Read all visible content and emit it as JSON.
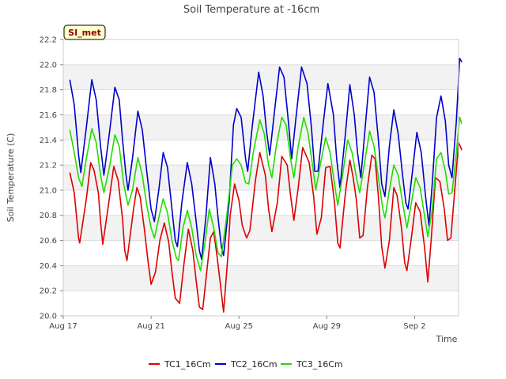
{
  "chart_data": {
    "type": "line",
    "title": "Soil Temperature at -16cm",
    "xlabel": "Time",
    "ylabel": "Soil Temperature (C)",
    "badge": "SI_met",
    "x_ticks": [
      {
        "day": 0,
        "label": "Aug 17"
      },
      {
        "day": 4,
        "label": "Aug 21"
      },
      {
        "day": 8,
        "label": "Aug 25"
      },
      {
        "day": 12,
        "label": "Aug 29"
      },
      {
        "day": 16,
        "label": "Sep 2"
      }
    ],
    "xlim": [
      0,
      18
    ],
    "ylim": [
      20.0,
      22.2
    ],
    "y_ticks": [
      "20.0",
      "20.2",
      "20.4",
      "20.6",
      "20.8",
      "21.0",
      "21.2",
      "21.4",
      "21.6",
      "21.8",
      "22.0",
      "22.2"
    ],
    "grid": true,
    "legend_position": "bottom",
    "series": [
      {
        "name": "TC1_16Cm",
        "color": "#dd0000",
        "points": [
          [
            0.3,
            21.14
          ],
          [
            0.5,
            20.98
          ],
          [
            0.7,
            20.62
          ],
          [
            0.75,
            20.58
          ],
          [
            1.05,
            20.93
          ],
          [
            1.25,
            21.22
          ],
          [
            1.4,
            21.16
          ],
          [
            1.6,
            20.98
          ],
          [
            1.7,
            20.75
          ],
          [
            1.8,
            20.57
          ],
          [
            2.05,
            20.87
          ],
          [
            2.3,
            21.19
          ],
          [
            2.5,
            21.08
          ],
          [
            2.7,
            20.77
          ],
          [
            2.8,
            20.52
          ],
          [
            2.9,
            20.44
          ],
          [
            3.2,
            20.85
          ],
          [
            3.35,
            21.02
          ],
          [
            3.5,
            20.95
          ],
          [
            3.7,
            20.68
          ],
          [
            3.85,
            20.45
          ],
          [
            4.0,
            20.25
          ],
          [
            4.2,
            20.35
          ],
          [
            4.4,
            20.6
          ],
          [
            4.6,
            20.74
          ],
          [
            4.8,
            20.59
          ],
          [
            4.95,
            20.35
          ],
          [
            5.1,
            20.14
          ],
          [
            5.3,
            20.1
          ],
          [
            5.5,
            20.42
          ],
          [
            5.7,
            20.69
          ],
          [
            5.9,
            20.52
          ],
          [
            6.05,
            20.28
          ],
          [
            6.2,
            20.07
          ],
          [
            6.35,
            20.05
          ],
          [
            6.7,
            20.62
          ],
          [
            6.85,
            20.67
          ],
          [
            7.0,
            20.48
          ],
          [
            7.15,
            20.26
          ],
          [
            7.3,
            20.03
          ],
          [
            7.5,
            20.48
          ],
          [
            7.6,
            20.8
          ],
          [
            7.8,
            21.05
          ],
          [
            8.0,
            20.92
          ],
          [
            8.15,
            20.72
          ],
          [
            8.35,
            20.62
          ],
          [
            8.5,
            20.68
          ],
          [
            8.75,
            21.08
          ],
          [
            8.95,
            21.3
          ],
          [
            9.2,
            21.12
          ],
          [
            9.35,
            20.85
          ],
          [
            9.5,
            20.67
          ],
          [
            9.75,
            20.9
          ],
          [
            9.95,
            21.27
          ],
          [
            10.2,
            21.2
          ],
          [
            10.35,
            20.96
          ],
          [
            10.5,
            20.76
          ],
          [
            10.7,
            21.02
          ],
          [
            10.9,
            21.34
          ],
          [
            11.2,
            21.22
          ],
          [
            11.4,
            20.95
          ],
          [
            11.55,
            20.65
          ],
          [
            11.75,
            20.78
          ],
          [
            11.95,
            21.18
          ],
          [
            12.15,
            21.19
          ],
          [
            12.35,
            20.9
          ],
          [
            12.5,
            20.58
          ],
          [
            12.6,
            20.54
          ],
          [
            12.85,
            20.98
          ],
          [
            13.05,
            21.24
          ],
          [
            13.2,
            21.1
          ],
          [
            13.35,
            20.92
          ],
          [
            13.5,
            20.62
          ],
          [
            13.65,
            20.64
          ],
          [
            13.85,
            21.02
          ],
          [
            14.05,
            21.28
          ],
          [
            14.2,
            21.25
          ],
          [
            14.35,
            20.95
          ],
          [
            14.5,
            20.55
          ],
          [
            14.65,
            20.38
          ],
          [
            14.85,
            20.6
          ],
          [
            15.05,
            21.02
          ],
          [
            15.2,
            20.96
          ],
          [
            15.4,
            20.7
          ],
          [
            15.55,
            20.42
          ],
          [
            15.65,
            20.36
          ],
          [
            15.85,
            20.62
          ],
          [
            16.05,
            20.9
          ],
          [
            16.25,
            20.83
          ],
          [
            16.45,
            20.55
          ],
          [
            16.6,
            20.27
          ],
          [
            16.75,
            20.6
          ],
          [
            16.95,
            21.1
          ],
          [
            17.15,
            21.07
          ],
          [
            17.35,
            20.85
          ],
          [
            17.5,
            20.6
          ],
          [
            17.65,
            20.62
          ],
          [
            17.85,
            21.05
          ],
          [
            18.0,
            21.38
          ],
          [
            18.15,
            21.32
          ]
        ]
      },
      {
        "name": "TC2_16Cm",
        "color": "#0000cc",
        "points": [
          [
            0.3,
            21.88
          ],
          [
            0.5,
            21.68
          ],
          [
            0.7,
            21.28
          ],
          [
            0.8,
            21.14
          ],
          [
            1.05,
            21.5
          ],
          [
            1.3,
            21.88
          ],
          [
            1.5,
            21.72
          ],
          [
            1.7,
            21.35
          ],
          [
            1.85,
            21.12
          ],
          [
            2.1,
            21.45
          ],
          [
            2.35,
            21.82
          ],
          [
            2.55,
            21.72
          ],
          [
            2.7,
            21.4
          ],
          [
            2.85,
            21.13
          ],
          [
            2.95,
            21.0
          ],
          [
            3.15,
            21.25
          ],
          [
            3.4,
            21.63
          ],
          [
            3.6,
            21.48
          ],
          [
            3.8,
            21.15
          ],
          [
            4.0,
            20.85
          ],
          [
            4.15,
            20.75
          ],
          [
            4.35,
            21.0
          ],
          [
            4.55,
            21.3
          ],
          [
            4.75,
            21.18
          ],
          [
            4.95,
            20.85
          ],
          [
            5.1,
            20.6
          ],
          [
            5.2,
            20.55
          ],
          [
            5.4,
            20.9
          ],
          [
            5.65,
            21.22
          ],
          [
            5.85,
            21.05
          ],
          [
            6.05,
            20.75
          ],
          [
            6.2,
            20.52
          ],
          [
            6.3,
            20.45
          ],
          [
            6.5,
            20.8
          ],
          [
            6.7,
            21.26
          ],
          [
            6.9,
            21.05
          ],
          [
            7.05,
            20.78
          ],
          [
            7.2,
            20.55
          ],
          [
            7.3,
            20.48
          ],
          [
            7.55,
            20.9
          ],
          [
            7.75,
            21.52
          ],
          [
            7.9,
            21.65
          ],
          [
            8.1,
            21.58
          ],
          [
            8.3,
            21.25
          ],
          [
            8.4,
            21.15
          ],
          [
            8.6,
            21.5
          ],
          [
            8.9,
            21.94
          ],
          [
            9.1,
            21.75
          ],
          [
            9.25,
            21.48
          ],
          [
            9.4,
            21.28
          ],
          [
            9.6,
            21.6
          ],
          [
            9.85,
            21.98
          ],
          [
            10.05,
            21.9
          ],
          [
            10.25,
            21.55
          ],
          [
            10.4,
            21.25
          ],
          [
            10.6,
            21.58
          ],
          [
            10.85,
            21.98
          ],
          [
            11.1,
            21.85
          ],
          [
            11.3,
            21.5
          ],
          [
            11.45,
            21.15
          ],
          [
            11.6,
            21.15
          ],
          [
            11.85,
            21.55
          ],
          [
            12.05,
            21.85
          ],
          [
            12.3,
            21.6
          ],
          [
            12.45,
            21.25
          ],
          [
            12.6,
            21.02
          ],
          [
            12.85,
            21.45
          ],
          [
            13.05,
            21.84
          ],
          [
            13.25,
            21.6
          ],
          [
            13.4,
            21.3
          ],
          [
            13.55,
            21.1
          ],
          [
            13.75,
            21.5
          ],
          [
            13.95,
            21.9
          ],
          [
            14.15,
            21.78
          ],
          [
            14.35,
            21.4
          ],
          [
            14.5,
            21.05
          ],
          [
            14.65,
            20.95
          ],
          [
            14.85,
            21.35
          ],
          [
            15.05,
            21.64
          ],
          [
            15.25,
            21.45
          ],
          [
            15.45,
            21.12
          ],
          [
            15.6,
            20.9
          ],
          [
            15.7,
            20.85
          ],
          [
            15.9,
            21.15
          ],
          [
            16.1,
            21.46
          ],
          [
            16.3,
            21.3
          ],
          [
            16.5,
            20.95
          ],
          [
            16.65,
            20.72
          ],
          [
            16.8,
            21.05
          ],
          [
            17.0,
            21.58
          ],
          [
            17.2,
            21.75
          ],
          [
            17.4,
            21.55
          ],
          [
            17.55,
            21.2
          ],
          [
            17.7,
            21.1
          ],
          [
            17.9,
            21.55
          ],
          [
            18.05,
            22.05
          ],
          [
            18.15,
            22.02
          ]
        ]
      },
      {
        "name": "TC3_16Cm",
        "color": "#22dd00",
        "points": [
          [
            0.3,
            21.48
          ],
          [
            0.5,
            21.3
          ],
          [
            0.7,
            21.1
          ],
          [
            0.85,
            21.03
          ],
          [
            1.05,
            21.25
          ],
          [
            1.3,
            21.49
          ],
          [
            1.5,
            21.38
          ],
          [
            1.7,
            21.12
          ],
          [
            1.85,
            20.98
          ],
          [
            2.1,
            21.18
          ],
          [
            2.35,
            21.44
          ],
          [
            2.55,
            21.35
          ],
          [
            2.75,
            21.05
          ],
          [
            2.95,
            20.88
          ],
          [
            3.15,
            21.0
          ],
          [
            3.4,
            21.26
          ],
          [
            3.6,
            21.12
          ],
          [
            3.8,
            20.88
          ],
          [
            4.0,
            20.7
          ],
          [
            4.15,
            20.62
          ],
          [
            4.35,
            20.78
          ],
          [
            4.55,
            20.93
          ],
          [
            4.75,
            20.82
          ],
          [
            4.95,
            20.6
          ],
          [
            5.15,
            20.46
          ],
          [
            5.25,
            20.44
          ],
          [
            5.45,
            20.7
          ],
          [
            5.65,
            20.84
          ],
          [
            5.85,
            20.7
          ],
          [
            6.05,
            20.48
          ],
          [
            6.25,
            20.36
          ],
          [
            6.45,
            20.58
          ],
          [
            6.65,
            20.85
          ],
          [
            6.85,
            20.7
          ],
          [
            7.05,
            20.5
          ],
          [
            7.2,
            20.47
          ],
          [
            7.45,
            20.8
          ],
          [
            7.7,
            21.2
          ],
          [
            7.9,
            21.25
          ],
          [
            8.1,
            21.2
          ],
          [
            8.3,
            21.06
          ],
          [
            8.45,
            21.05
          ],
          [
            8.65,
            21.3
          ],
          [
            8.95,
            21.56
          ],
          [
            9.15,
            21.45
          ],
          [
            9.35,
            21.2
          ],
          [
            9.5,
            21.1
          ],
          [
            9.7,
            21.35
          ],
          [
            9.95,
            21.58
          ],
          [
            10.15,
            21.52
          ],
          [
            10.35,
            21.25
          ],
          [
            10.5,
            21.1
          ],
          [
            10.7,
            21.35
          ],
          [
            10.95,
            21.58
          ],
          [
            11.15,
            21.45
          ],
          [
            11.35,
            21.2
          ],
          [
            11.5,
            21.0
          ],
          [
            11.7,
            21.2
          ],
          [
            11.95,
            21.42
          ],
          [
            12.15,
            21.3
          ],
          [
            12.35,
            21.05
          ],
          [
            12.5,
            20.88
          ],
          [
            12.7,
            21.1
          ],
          [
            12.95,
            21.4
          ],
          [
            13.15,
            21.3
          ],
          [
            13.35,
            21.1
          ],
          [
            13.5,
            20.98
          ],
          [
            13.7,
            21.2
          ],
          [
            13.95,
            21.47
          ],
          [
            14.15,
            21.35
          ],
          [
            14.35,
            21.1
          ],
          [
            14.55,
            20.85
          ],
          [
            14.65,
            20.78
          ],
          [
            14.85,
            21.0
          ],
          [
            15.05,
            21.2
          ],
          [
            15.25,
            21.12
          ],
          [
            15.45,
            20.9
          ],
          [
            15.65,
            20.7
          ],
          [
            15.85,
            20.9
          ],
          [
            16.05,
            21.1
          ],
          [
            16.25,
            21.02
          ],
          [
            16.45,
            20.8
          ],
          [
            16.6,
            20.63
          ],
          [
            16.8,
            20.85
          ],
          [
            17.0,
            21.25
          ],
          [
            17.2,
            21.3
          ],
          [
            17.4,
            21.15
          ],
          [
            17.55,
            20.97
          ],
          [
            17.7,
            20.98
          ],
          [
            17.9,
            21.3
          ],
          [
            18.05,
            21.58
          ],
          [
            18.15,
            21.53
          ]
        ]
      }
    ]
  }
}
